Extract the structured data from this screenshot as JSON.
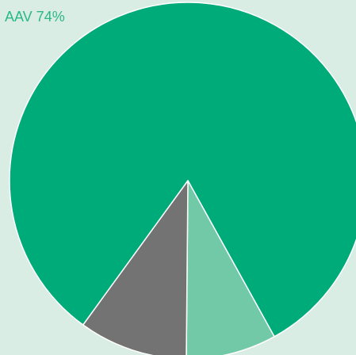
{
  "chart_data": {
    "type": "pie",
    "values": [
      74,
      7.4,
      8.9
    ],
    "value_labels": [
      "AAV 74%",
      null,
      null
    ],
    "colors": [
      "#00ab7a",
      "#72c9a8",
      "#737373"
    ]
  }
}
